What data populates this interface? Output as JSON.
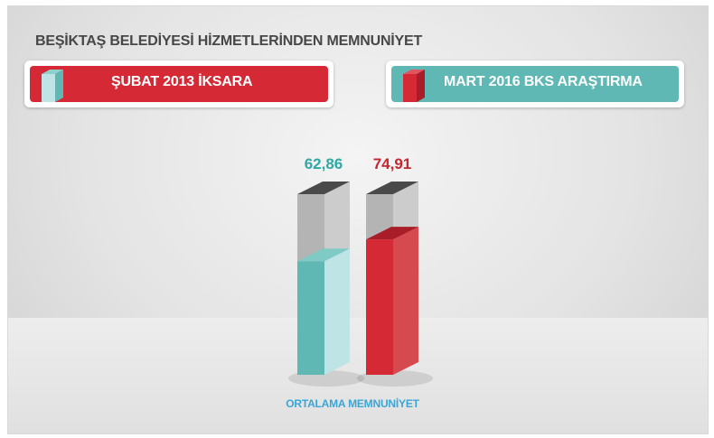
{
  "chart_data": {
    "type": "bar",
    "title": "BEŞİKTAŞ BELEDİYESİ HİZMETLERİNDEN MEMNUNİYET",
    "categories": [
      "ORTALAMA MEMNUNİYET"
    ],
    "series": [
      {
        "name": "ŞUBAT 2013 İKSARA",
        "values": [
          62.86
        ],
        "value_label": "62,86",
        "color": "#5fb8b4"
      },
      {
        "name": "MART 2016 BKS ARAŞTIRMA",
        "values": [
          74.91
        ],
        "value_label": "74,91",
        "color": "#d52a36"
      }
    ],
    "ylim": [
      0,
      100
    ],
    "xlabel": "ORTALAMA MEMNUNİYET",
    "legend_position": "top",
    "grid": false
  },
  "colors": {
    "teal": "#5fb8b4",
    "teal_value_text": "#2fa8a4",
    "red": "#d52a36",
    "red_value_text": "#c4262f",
    "empty_gray": "#bdbdbd",
    "xlabel_blue": "#3aa6d6"
  }
}
